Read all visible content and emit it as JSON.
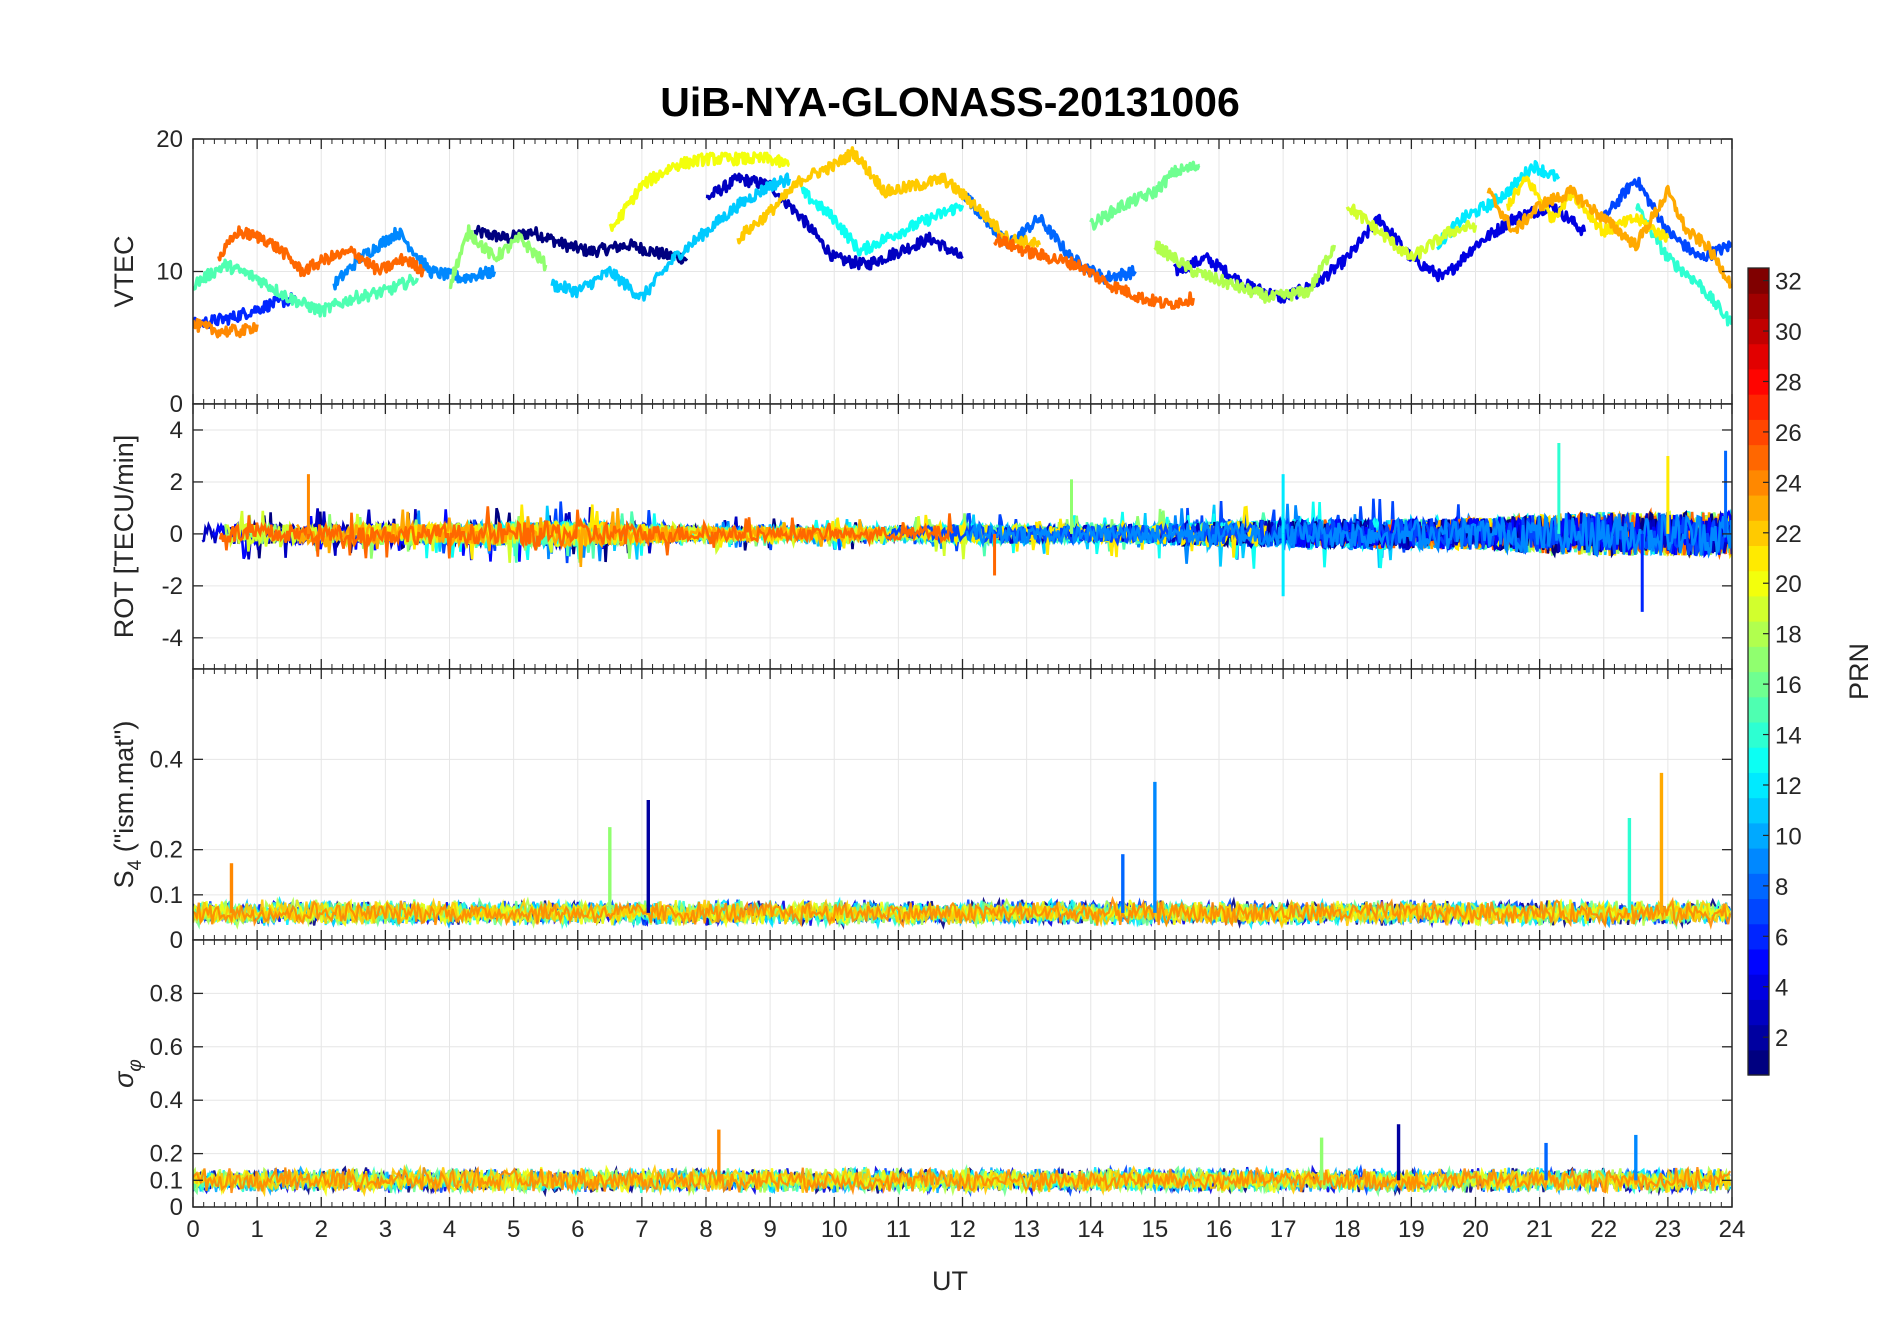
{
  "chart_data": {
    "type": "line",
    "title": "UiB-NYA-GLONASS-20131006",
    "xlabel": "UT",
    "x_ticks": [
      "0",
      "1",
      "2",
      "3",
      "4",
      "5",
      "6",
      "7",
      "8",
      "9",
      "10",
      "11",
      "12",
      "13",
      "14",
      "15",
      "16",
      "17",
      "18",
      "19",
      "20",
      "21",
      "22",
      "23",
      "24"
    ],
    "xlim": [
      0,
      24
    ],
    "panels": [
      {
        "name": "vtec",
        "ylabel": "VTEC",
        "ylim": [
          0,
          20
        ],
        "y_ticks": [
          {
            "v": 0,
            "label": "0"
          },
          {
            "v": 10,
            "label": "10"
          },
          {
            "v": 20,
            "label": "20"
          }
        ],
        "series": [
          {
            "prn": 1,
            "points": [
              [
                4.4,
                13
              ],
              [
                4.9,
                12.5
              ],
              [
                5.3,
                13
              ],
              [
                5.8,
                12
              ],
              [
                6.2,
                11.5
              ],
              [
                6.8,
                12
              ],
              [
                7.4,
                11.2
              ],
              [
                7.7,
                11
              ]
            ]
          },
          {
            "prn": 3,
            "points": [
              [
                8.0,
                15.5
              ],
              [
                8.5,
                17
              ],
              [
                9.0,
                16.5
              ],
              [
                9.5,
                14
              ],
              [
                10.0,
                11
              ],
              [
                10.5,
                10.5
              ],
              [
                11.0,
                11.5
              ],
              [
                11.5,
                12.5
              ],
              [
                12.0,
                11
              ]
            ]
          },
          {
            "prn": 4,
            "points": [
              [
                15.3,
                10
              ],
              [
                15.8,
                11
              ],
              [
                16.4,
                9
              ],
              [
                17.0,
                8
              ],
              [
                17.5,
                9
              ],
              [
                18.0,
                11
              ],
              [
                18.5,
                14
              ],
              [
                19.0,
                11
              ],
              [
                19.5,
                9.5
              ],
              [
                20.0,
                12
              ],
              [
                20.6,
                14
              ],
              [
                21.2,
                15
              ],
              [
                21.7,
                13
              ]
            ]
          },
          {
            "prn": 6,
            "points": [
              [
                0.0,
                6
              ],
              [
                0.6,
                6.5
              ],
              [
                1.2,
                7.5
              ],
              [
                1.6,
                8
              ]
            ]
          },
          {
            "prn": 7,
            "points": [
              [
                22.0,
                14
              ],
              [
                22.5,
                17
              ],
              [
                23.0,
                13
              ],
              [
                23.5,
                11
              ],
              [
                24.0,
                12
              ]
            ]
          },
          {
            "prn": 8,
            "points": [
              [
                12.0,
                16
              ],
              [
                12.7,
                12
              ],
              [
                13.2,
                14
              ],
              [
                13.7,
                11
              ],
              [
                14.2,
                9.5
              ],
              [
                14.7,
                10
              ]
            ]
          },
          {
            "prn": 9,
            "points": [
              [
                2.2,
                9
              ],
              [
                2.6,
                11
              ],
              [
                3.2,
                13
              ],
              [
                3.7,
                10
              ],
              [
                4.2,
                9.5
              ],
              [
                4.7,
                10
              ]
            ]
          },
          {
            "prn": 11,
            "points": [
              [
                5.6,
                9
              ],
              [
                6.0,
                8.5
              ],
              [
                6.5,
                10
              ],
              [
                7.0,
                8
              ],
              [
                7.5,
                11
              ],
              [
                8.0,
                13
              ],
              [
                8.5,
                15
              ],
              [
                9.0,
                16.5
              ],
              [
                9.3,
                17
              ]
            ]
          },
          {
            "prn": 12,
            "points": [
              [
                19.4,
                12
              ],
              [
                19.8,
                14
              ],
              [
                20.2,
                15
              ],
              [
                20.5,
                16
              ],
              [
                20.9,
                18
              ],
              [
                21.3,
                17
              ]
            ]
          },
          {
            "prn": 13,
            "points": [
              [
                9.5,
                16
              ],
              [
                10.0,
                14
              ],
              [
                10.4,
                11.5
              ],
              [
                10.8,
                12.5
              ],
              [
                11.5,
                14
              ],
              [
                12.0,
                15
              ]
            ]
          },
          {
            "prn": 14,
            "points": [
              [
                22.5,
                15
              ],
              [
                23.0,
                11
              ],
              [
                23.5,
                9
              ],
              [
                24.0,
                6
              ]
            ]
          },
          {
            "prn": 15,
            "points": [
              [
                0.0,
                9
              ],
              [
                0.5,
                10.5
              ],
              [
                1.0,
                9.5
              ],
              [
                1.5,
                8
              ],
              [
                2.0,
                7
              ],
              [
                2.5,
                8
              ],
              [
                3.0,
                8.5
              ],
              [
                3.5,
                9.5
              ]
            ]
          },
          {
            "prn": 16,
            "points": [
              [
                14.0,
                13.5
              ],
              [
                14.5,
                15
              ],
              [
                15.0,
                16
              ],
              [
                15.3,
                17.5
              ],
              [
                15.7,
                18
              ]
            ]
          },
          {
            "prn": 17,
            "points": [
              [
                4.0,
                9
              ],
              [
                4.3,
                13
              ],
              [
                4.7,
                11
              ],
              [
                5.1,
                12.5
              ],
              [
                5.5,
                10.5
              ]
            ]
          },
          {
            "prn": 18,
            "points": [
              [
                15.0,
                12
              ],
              [
                15.6,
                10
              ],
              [
                16.2,
                9
              ],
              [
                16.8,
                8
              ],
              [
                17.4,
                8.5
              ],
              [
                17.8,
                12
              ]
            ]
          },
          {
            "prn": 19,
            "points": [
              [
                18.0,
                15
              ],
              [
                18.5,
                13
              ],
              [
                19.0,
                11
              ],
              [
                19.6,
                13
              ],
              [
                20.0,
                13.5
              ]
            ]
          },
          {
            "prn": 20,
            "points": [
              [
                6.5,
                13
              ],
              [
                7.0,
                16.5
              ],
              [
                7.5,
                18
              ],
              [
                8.0,
                18.5
              ],
              [
                8.5,
                18.5
              ],
              [
                9.0,
                18.5
              ],
              [
                9.3,
                18
              ]
            ]
          },
          {
            "prn": 21,
            "points": [
              [
                20.5,
                15
              ],
              [
                20.8,
                17
              ],
              [
                21.2,
                14
              ],
              [
                21.5,
                16
              ],
              [
                22.0,
                13
              ],
              [
                22.5,
                14
              ],
              [
                23.0,
                12.5
              ]
            ]
          },
          {
            "prn": 22,
            "points": [
              [
                8.5,
                12.5
              ],
              [
                9.0,
                14.5
              ],
              [
                9.5,
                17
              ],
              [
                10.0,
                18
              ],
              [
                10.3,
                19
              ],
              [
                10.8,
                16
              ],
              [
                11.3,
                16.5
              ],
              [
                11.7,
                17
              ],
              [
                12.2,
                15
              ],
              [
                12.7,
                12.5
              ],
              [
                13.2,
                12
              ]
            ]
          },
          {
            "prn": 23,
            "points": [
              [
                20.2,
                16
              ],
              [
                20.6,
                13
              ],
              [
                21.0,
                15
              ],
              [
                21.5,
                16
              ],
              [
                22.0,
                14
              ],
              [
                22.5,
                12
              ],
              [
                23.0,
                16
              ],
              [
                23.3,
                13
              ],
              [
                23.6,
                12
              ],
              [
                24.0,
                9
              ]
            ]
          },
          {
            "prn": 24,
            "points": [
              [
                0.0,
                6
              ],
              [
                0.4,
                5.5
              ],
              [
                0.8,
                5.5
              ],
              [
                1.0,
                6
              ]
            ]
          },
          {
            "prn": 25,
            "points": [
              [
                0.4,
                11
              ],
              [
                0.7,
                13
              ],
              [
                1.1,
                12.5
              ],
              [
                1.4,
                11.5
              ],
              [
                1.7,
                10
              ],
              [
                2.1,
                11
              ],
              [
                2.5,
                11.5
              ],
              [
                2.9,
                10
              ],
              [
                3.3,
                11
              ],
              [
                3.6,
                10
              ]
            ]
          },
          {
            "prn": 25,
            "points": [
              [
                12.5,
                12.5
              ],
              [
                13.0,
                11.5
              ],
              [
                13.4,
                11
              ],
              [
                13.8,
                10.5
              ],
              [
                14.3,
                9
              ],
              [
                14.8,
                8
              ],
              [
                15.2,
                7.5
              ],
              [
                15.6,
                8
              ]
            ]
          }
        ]
      },
      {
        "name": "rot",
        "ylabel": "ROT [TECU/min]",
        "ylim": [
          -5.2,
          5
        ],
        "y_ticks": [
          {
            "v": -4,
            "label": "-4"
          },
          {
            "v": -2,
            "label": "-2"
          },
          {
            "v": 0,
            "label": "0"
          },
          {
            "v": 2,
            "label": "2"
          },
          {
            "v": 4,
            "label": "4"
          }
        ],
        "noise_amplitude": [
          [
            0,
            1.0
          ],
          [
            4,
            1.0
          ],
          [
            6,
            1.3
          ],
          [
            8,
            0.7
          ],
          [
            11,
            0.6
          ],
          [
            12,
            1.0
          ],
          [
            14,
            0.8
          ],
          [
            16,
            1.3
          ],
          [
            18,
            1.5
          ],
          [
            20,
            1.6
          ],
          [
            21,
            2.0
          ],
          [
            22,
            2.2
          ],
          [
            24,
            2.2
          ]
        ],
        "spikes": [
          {
            "x": 1.8,
            "y": 2.3
          },
          {
            "x": 12.5,
            "y": -1.6
          },
          {
            "x": 13.7,
            "y": 2.1
          },
          {
            "x": 17.0,
            "y": 2.3
          },
          {
            "x": 17.0,
            "y": -2.4
          },
          {
            "x": 21.3,
            "y": 3.5
          },
          {
            "x": 22.6,
            "y": -3.0
          },
          {
            "x": 23.0,
            "y": 3.0
          },
          {
            "x": 23.9,
            "y": 3.2
          }
        ]
      },
      {
        "name": "s4",
        "ylabel_main": "S",
        "ylabel_sub": "4",
        "ylabel_rest": " (\"ism.mat\")",
        "ylim": [
          0,
          0.6
        ],
        "y_ticks": [
          {
            "v": 0,
            "label": "0"
          },
          {
            "v": 0.1,
            "label": "0.1"
          },
          {
            "v": 0.2,
            "label": "0.2"
          },
          {
            "v": 0.4,
            "label": "0.4"
          }
        ],
        "baseline": 0.06,
        "noise_amplitude": 0.03,
        "spikes": [
          {
            "x": 0.6,
            "y": 0.17
          },
          {
            "x": 6.5,
            "y": 0.25
          },
          {
            "x": 7.1,
            "y": 0.31
          },
          {
            "x": 14.5,
            "y": 0.19
          },
          {
            "x": 15.0,
            "y": 0.35
          },
          {
            "x": 22.4,
            "y": 0.27
          },
          {
            "x": 22.9,
            "y": 0.37
          }
        ]
      },
      {
        "name": "sigma_phi",
        "ylabel_main": "σ",
        "ylabel_sub": "φ",
        "ylim": [
          0,
          1
        ],
        "y_ticks": [
          {
            "v": 0,
            "label": "0"
          },
          {
            "v": 0.1,
            "label": "0.1"
          },
          {
            "v": 0.2,
            "label": "0.2"
          },
          {
            "v": 0.4,
            "label": "0.4"
          },
          {
            "v": 0.6,
            "label": "0.6"
          },
          {
            "v": 0.8,
            "label": "0.8"
          }
        ],
        "baseline": 0.1,
        "noise_amplitude": 0.05,
        "spikes": [
          {
            "x": 8.2,
            "y": 0.29
          },
          {
            "x": 17.6,
            "y": 0.26
          },
          {
            "x": 18.8,
            "y": 0.31
          },
          {
            "x": 21.1,
            "y": 0.24
          },
          {
            "x": 22.5,
            "y": 0.27
          }
        ]
      }
    ],
    "colorbar": {
      "label": "PRN",
      "range": [
        1,
        32
      ],
      "tick_labels": [
        "2",
        "4",
        "6",
        "8",
        "10",
        "12",
        "14",
        "16",
        "18",
        "20",
        "22",
        "24",
        "26",
        "28",
        "30",
        "32"
      ],
      "colormap": "jet"
    }
  }
}
